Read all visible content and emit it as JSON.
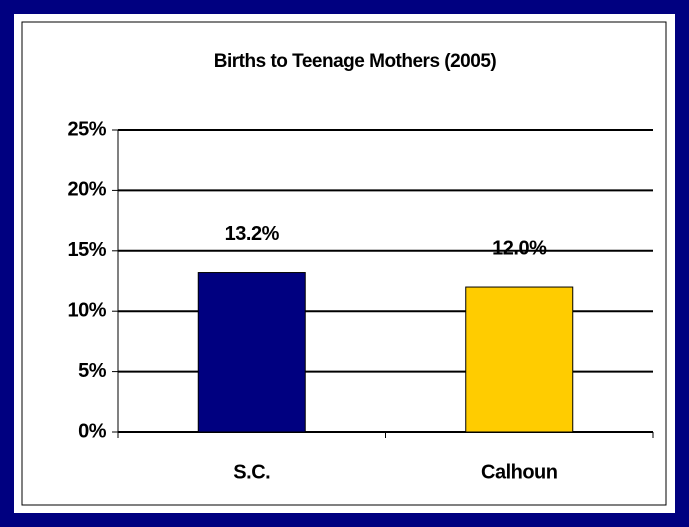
{
  "chart_data": {
    "type": "bar",
    "title": "Births to Teenage Mothers (2005)",
    "categories": [
      "S.C.",
      "Calhoun"
    ],
    "values": [
      13.2,
      12.0
    ],
    "value_labels": [
      "13.2%",
      "12.0%"
    ],
    "colors": [
      "#000080",
      "#ffcc00"
    ],
    "ylim": [
      0,
      25
    ],
    "yticks": [
      {
        "value": 0,
        "label": "0%"
      },
      {
        "value": 5,
        "label": "5%"
      },
      {
        "value": 10,
        "label": "10%"
      },
      {
        "value": 15,
        "label": "15%"
      },
      {
        "value": 20,
        "label": "20%"
      },
      {
        "value": 25,
        "label": "25%"
      }
    ],
    "grid": true
  }
}
